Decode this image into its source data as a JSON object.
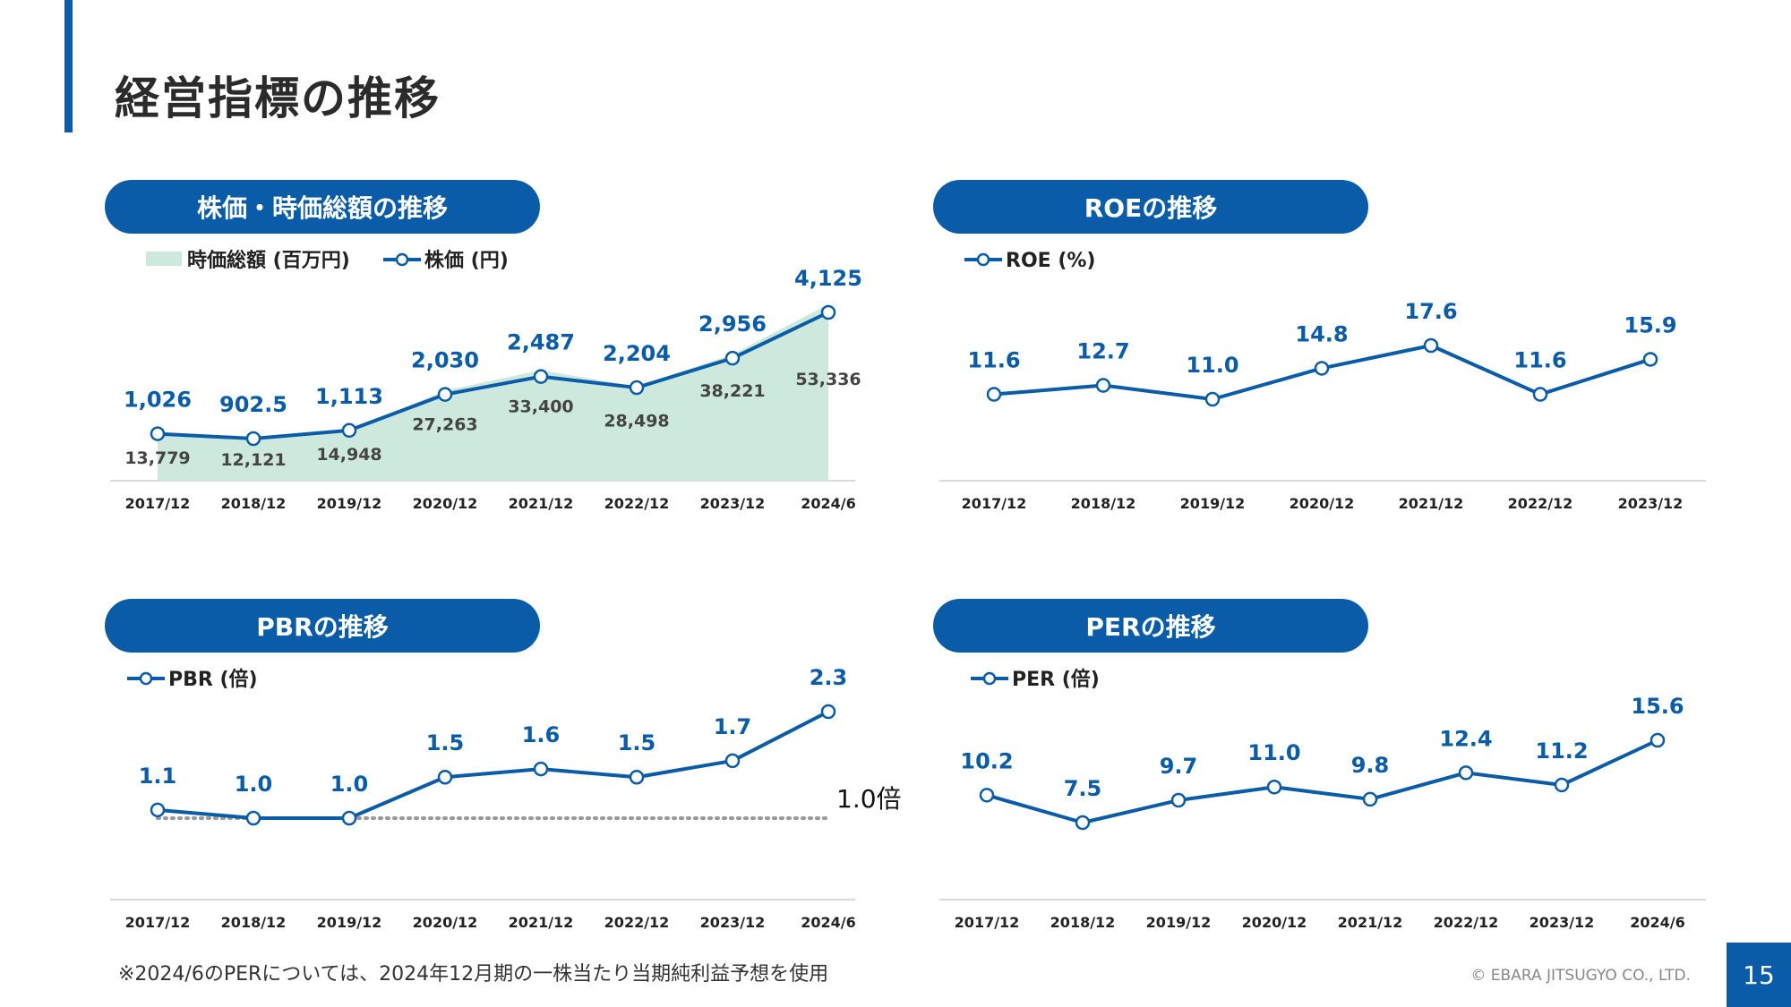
{
  "page": {
    "title": "経営指標の推移",
    "footnote": "※2024/6のPERについては、2024年12月期の一株当たり当期純利益予想を使用",
    "copyright": "© EBARA JITSUGYO CO., LTD.",
    "page_number": "15"
  },
  "colors": {
    "accent": "#0b5ca8",
    "area_fill": "#cde9dd",
    "grid": "#d9d9d9",
    "ref_line": "#9a9a9a"
  },
  "chart_data": [
    {
      "id": "stock",
      "panel_title": "株価・時価総額の推移",
      "type": "line",
      "categories": [
        "2017/12",
        "2018/12",
        "2019/12",
        "2020/12",
        "2021/12",
        "2022/12",
        "2023/12",
        "2024/6"
      ],
      "series": [
        {
          "name": "時価総額 (百万円)",
          "kind": "area",
          "values": [
            13779,
            12121,
            14948,
            27263,
            33400,
            28498,
            38221,
            53336
          ],
          "labels": [
            "13,779",
            "12,121",
            "14,948",
            "27,263",
            "33,400",
            "28,498",
            "38,221",
            "53,336"
          ]
        },
        {
          "name": "株価 (円)",
          "kind": "line",
          "values": [
            1026,
            902.5,
            1113,
            2030,
            2487,
            2204,
            2956,
            4125
          ],
          "labels": [
            "1,026",
            "902.5",
            "1,113",
            "2,030",
            "2,487",
            "2,204",
            "2,956",
            "4,125"
          ]
        }
      ]
    },
    {
      "id": "roe",
      "panel_title": "ROEの推移",
      "type": "line",
      "categories": [
        "2017/12",
        "2018/12",
        "2019/12",
        "2020/12",
        "2021/12",
        "2022/12",
        "2023/12"
      ],
      "series": [
        {
          "name": "ROE (%)",
          "kind": "line",
          "values": [
            11.6,
            12.7,
            11.0,
            14.8,
            17.6,
            11.6,
            15.9
          ],
          "labels": [
            "11.6",
            "12.7",
            "11.0",
            "14.8",
            "17.6",
            "11.6",
            "15.9"
          ]
        }
      ]
    },
    {
      "id": "pbr",
      "panel_title": "PBRの推移",
      "type": "line",
      "categories": [
        "2017/12",
        "2018/12",
        "2019/12",
        "2020/12",
        "2021/12",
        "2022/12",
        "2023/12",
        "2024/6"
      ],
      "series": [
        {
          "name": "PBR (倍)",
          "kind": "line",
          "values": [
            1.1,
            1.0,
            1.0,
            1.5,
            1.6,
            1.5,
            1.7,
            2.3
          ],
          "labels": [
            "1.1",
            "1.0",
            "1.0",
            "1.5",
            "1.6",
            "1.5",
            "1.7",
            "2.3"
          ]
        }
      ],
      "reference_line": {
        "value": 1.0,
        "label": "1.0倍"
      }
    },
    {
      "id": "per",
      "panel_title": "PERの推移",
      "type": "line",
      "categories": [
        "2017/12",
        "2018/12",
        "2019/12",
        "2020/12",
        "2021/12",
        "2022/12",
        "2023/12",
        "2024/6"
      ],
      "series": [
        {
          "name": "PER (倍)",
          "kind": "line",
          "values": [
            10.2,
            7.5,
            9.7,
            11.0,
            9.8,
            12.4,
            11.2,
            15.6
          ],
          "labels": [
            "10.2",
            "7.5",
            "9.7",
            "11.0",
            "9.8",
            "12.4",
            "11.2",
            "15.6"
          ]
        }
      ]
    }
  ]
}
